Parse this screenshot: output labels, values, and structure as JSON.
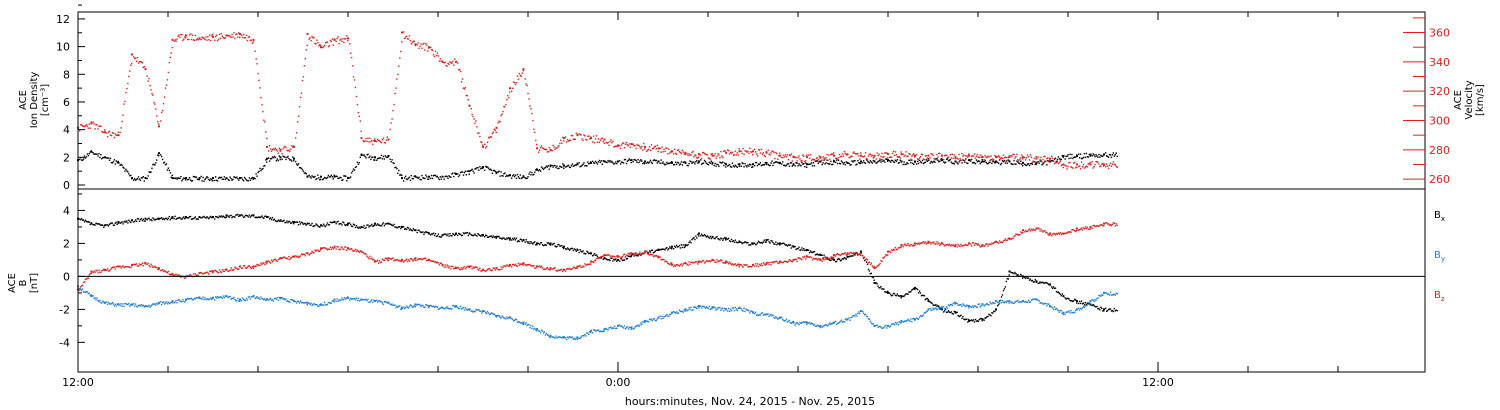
{
  "chart_data": [
    {
      "type": "scatter",
      "panel": "top",
      "ylabel_lines": [
        "ACE",
        "Ion Density",
        "[cm⁻³]"
      ],
      "ylabel2_lines": [
        "ACE",
        "Velocity",
        "[km/s]"
      ],
      "y_ticks": [
        0,
        2,
        4,
        6,
        8,
        10,
        12
      ],
      "ylim": [
        0,
        12.5
      ],
      "y2_ticks": [
        260,
        280,
        300,
        320,
        340,
        360
      ],
      "y2lim": [
        256,
        374
      ],
      "series": [
        {
          "name": "",
          "axis": "left",
          "color": "#000000",
          "x": [
            0.0,
            0.3,
            0.6,
            0.9,
            1.2,
            1.5,
            1.8,
            2.1,
            2.4,
            2.7,
            3.0,
            3.3,
            3.6,
            3.9,
            4.2,
            4.5,
            4.8,
            5.1,
            5.4,
            5.7,
            6.0,
            6.3,
            6.6,
            6.9,
            7.2,
            7.5,
            7.8,
            8.1,
            8.4,
            8.7,
            9.0,
            9.3,
            9.6,
            9.9,
            10.2,
            10.5,
            10.8,
            11.1,
            11.4,
            11.7,
            12.0,
            12.3,
            12.6,
            12.9,
            13.2,
            13.5,
            13.8,
            14.1,
            14.4,
            14.7,
            15.0,
            15.3,
            15.6,
            15.9,
            16.2,
            16.5,
            16.8,
            17.1,
            17.4,
            17.7,
            18.0,
            18.3,
            18.6,
            18.9,
            19.2,
            19.5,
            19.8,
            20.1,
            20.4,
            20.7,
            21.0,
            21.3,
            21.6,
            21.9,
            22.2,
            22.5,
            22.8
          ],
          "values": [
            1.8,
            2.4,
            2.0,
            1.6,
            0.5,
            0.5,
            2.3,
            0.5,
            0.5,
            0.5,
            0.5,
            0.5,
            0.5,
            0.5,
            1.9,
            2.0,
            1.9,
            0.6,
            0.6,
            0.6,
            0.5,
            2.2,
            2.0,
            2.1,
            0.5,
            0.6,
            0.6,
            0.6,
            0.8,
            1.0,
            1.3,
            0.9,
            0.7,
            0.6,
            1.1,
            1.4,
            1.4,
            1.5,
            1.6,
            1.7,
            1.7,
            1.8,
            1.7,
            1.7,
            1.6,
            1.6,
            1.7,
            1.6,
            1.5,
            1.5,
            1.5,
            1.6,
            1.6,
            1.5,
            1.5,
            1.7,
            1.7,
            1.6,
            1.7,
            1.7,
            1.8,
            1.7,
            1.7,
            1.8,
            1.8,
            1.7,
            1.8,
            1.7,
            1.7,
            1.7,
            1.6,
            1.6,
            1.7,
            2.1,
            2.1,
            2.2,
            2.2
          ]
        },
        {
          "name": "",
          "axis": "right",
          "color": "#e0201c",
          "x": [
            0.0,
            0.3,
            0.6,
            0.9,
            1.2,
            1.5,
            1.8,
            2.1,
            2.4,
            2.7,
            3.0,
            3.3,
            3.6,
            3.9,
            4.2,
            4.5,
            4.8,
            5.1,
            5.4,
            5.7,
            6.0,
            6.3,
            6.6,
            6.9,
            7.2,
            7.5,
            7.8,
            8.1,
            8.4,
            8.7,
            9.0,
            9.3,
            9.6,
            9.9,
            10.2,
            10.5,
            10.8,
            11.1,
            11.4,
            11.7,
            12.0,
            12.3,
            12.6,
            12.9,
            13.2,
            13.5,
            13.8,
            14.1,
            14.4,
            14.7,
            15.0,
            15.3,
            15.6,
            15.9,
            16.2,
            16.5,
            16.8,
            17.1,
            17.4,
            17.7,
            18.0,
            18.3,
            18.6,
            18.9,
            19.2,
            19.5,
            19.8,
            20.1,
            20.4,
            20.7,
            21.0,
            21.3,
            21.6,
            21.9,
            22.2,
            22.5,
            22.8
          ],
          "values": [
            295,
            298,
            292,
            290,
            345,
            335,
            296,
            355,
            358,
            356,
            357,
            358,
            359,
            355,
            282,
            280,
            282,
            359,
            350,
            355,
            356,
            288,
            286,
            287,
            360,
            352,
            350,
            340,
            340,
            310,
            282,
            295,
            322,
            335,
            281,
            280,
            288,
            290,
            288,
            287,
            283,
            284,
            282,
            281,
            279,
            278,
            277,
            276,
            278,
            279,
            279,
            278,
            276,
            275,
            275,
            275,
            276,
            277,
            276,
            276,
            277,
            277,
            276,
            276,
            276,
            275,
            276,
            275,
            275,
            275,
            275,
            274,
            274,
            270,
            270,
            270,
            270
          ]
        }
      ]
    },
    {
      "type": "scatter",
      "panel": "bottom",
      "ylabel_lines": [
        "ACE",
        "B",
        "[nT]"
      ],
      "y_ticks": [
        -4,
        -2,
        0,
        2,
        4
      ],
      "ylim": [
        -5.8,
        5.3
      ],
      "x_tick_labels": [
        "12:00",
        "0:00",
        "12:00"
      ],
      "x_tick_hours": [
        0,
        12,
        24
      ],
      "xlim": [
        0,
        30
      ],
      "xlabel": "hours:minutes, Nov. 24, 2015 - Nov. 25, 2015",
      "series": [
        {
          "name": "Bx",
          "color": "#000000",
          "x": [
            0.0,
            0.3,
            0.6,
            0.9,
            1.2,
            1.5,
            1.8,
            2.1,
            2.4,
            2.7,
            3.0,
            3.3,
            3.6,
            3.9,
            4.2,
            4.5,
            4.8,
            5.1,
            5.4,
            5.7,
            6.0,
            6.3,
            6.6,
            6.9,
            7.2,
            7.5,
            7.8,
            8.1,
            8.4,
            8.7,
            9.0,
            9.3,
            9.6,
            9.9,
            10.2,
            10.5,
            10.8,
            11.1,
            11.4,
            11.7,
            12.0,
            12.3,
            12.6,
            12.9,
            13.2,
            13.5,
            13.8,
            14.1,
            14.4,
            14.7,
            15.0,
            15.3,
            15.6,
            15.9,
            16.2,
            16.5,
            16.8,
            17.1,
            17.4,
            17.7,
            18.0,
            18.3,
            18.6,
            18.9,
            19.2,
            19.5,
            19.8,
            20.1,
            20.4,
            20.7,
            21.0,
            21.3,
            21.6,
            21.9,
            22.2,
            22.5,
            22.8
          ],
          "values": [
            3.5,
            3.2,
            3.1,
            3.3,
            3.4,
            3.5,
            3.5,
            3.6,
            3.6,
            3.6,
            3.6,
            3.7,
            3.7,
            3.7,
            3.6,
            3.4,
            3.3,
            3.2,
            3.1,
            3.3,
            3.2,
            3.0,
            3.2,
            3.2,
            3.0,
            2.8,
            2.6,
            2.5,
            2.6,
            2.6,
            2.5,
            2.4,
            2.3,
            2.2,
            2.0,
            2.0,
            1.8,
            1.6,
            1.4,
            1.1,
            1.0,
            1.3,
            1.5,
            1.6,
            1.8,
            1.9,
            2.6,
            2.4,
            2.3,
            2.1,
            2.0,
            2.2,
            2.0,
            1.8,
            1.6,
            1.3,
            1.0,
            1.2,
            1.5,
            -0.4,
            -1.0,
            -1.2,
            -0.7,
            -1.5,
            -2.0,
            -2.2,
            -2.7,
            -2.6,
            -2.0,
            0.3,
            0.0,
            -0.3,
            -0.5,
            -1.2,
            -1.5,
            -1.7,
            -2.0
          ]
        },
        {
          "name": "By",
          "color": "#1f7fd8",
          "x": [
            0.0,
            0.3,
            0.6,
            0.9,
            1.2,
            1.5,
            1.8,
            2.1,
            2.4,
            2.7,
            3.0,
            3.3,
            3.6,
            3.9,
            4.2,
            4.5,
            4.8,
            5.1,
            5.4,
            5.7,
            6.0,
            6.3,
            6.6,
            6.9,
            7.2,
            7.5,
            7.8,
            8.1,
            8.4,
            8.7,
            9.0,
            9.3,
            9.6,
            9.9,
            10.2,
            10.5,
            10.8,
            11.1,
            11.4,
            11.7,
            12.0,
            12.3,
            12.6,
            12.9,
            13.2,
            13.5,
            13.8,
            14.1,
            14.4,
            14.7,
            15.0,
            15.3,
            15.6,
            15.9,
            16.2,
            16.5,
            16.8,
            17.1,
            17.4,
            17.7,
            18.0,
            18.3,
            18.6,
            18.9,
            19.2,
            19.5,
            19.8,
            20.1,
            20.4,
            20.7,
            21.0,
            21.3,
            21.6,
            21.9,
            22.2,
            22.5,
            22.8
          ],
          "values": [
            -0.6,
            -1.2,
            -1.6,
            -1.7,
            -1.7,
            -1.8,
            -1.6,
            -1.5,
            -1.4,
            -1.3,
            -1.3,
            -1.2,
            -1.4,
            -1.2,
            -1.4,
            -1.3,
            -1.5,
            -1.6,
            -1.7,
            -1.4,
            -1.3,
            -1.4,
            -1.5,
            -1.6,
            -1.9,
            -1.7,
            -1.8,
            -1.9,
            -1.8,
            -2.0,
            -2.1,
            -2.4,
            -2.5,
            -2.8,
            -3.2,
            -3.6,
            -3.7,
            -3.7,
            -3.3,
            -3.2,
            -3.0,
            -3.1,
            -2.7,
            -2.5,
            -2.2,
            -2.0,
            -1.8,
            -1.9,
            -2.0,
            -1.9,
            -2.2,
            -2.3,
            -2.5,
            -2.8,
            -2.8,
            -3.0,
            -2.8,
            -2.6,
            -2.1,
            -3.0,
            -3.0,
            -2.7,
            -2.6,
            -2.0,
            -1.9,
            -1.6,
            -1.8,
            -1.7,
            -1.5,
            -1.5,
            -1.5,
            -1.4,
            -1.8,
            -2.2,
            -2.0,
            -1.5,
            -1.0
          ]
        },
        {
          "name": "Bz",
          "color": "#e0201c",
          "x": [
            0.0,
            0.3,
            0.6,
            0.9,
            1.2,
            1.5,
            1.8,
            2.1,
            2.4,
            2.7,
            3.0,
            3.3,
            3.6,
            3.9,
            4.2,
            4.5,
            4.8,
            5.1,
            5.4,
            5.7,
            6.0,
            6.3,
            6.6,
            6.9,
            7.2,
            7.5,
            7.8,
            8.1,
            8.4,
            8.7,
            9.0,
            9.3,
            9.6,
            9.9,
            10.2,
            10.5,
            10.8,
            11.1,
            11.4,
            11.7,
            12.0,
            12.3,
            12.6,
            12.9,
            13.2,
            13.5,
            13.8,
            14.1,
            14.4,
            14.7,
            15.0,
            15.3,
            15.6,
            15.9,
            16.2,
            16.5,
            16.8,
            17.1,
            17.4,
            17.7,
            18.0,
            18.3,
            18.6,
            18.9,
            19.2,
            19.5,
            19.8,
            20.1,
            20.4,
            20.7,
            21.0,
            21.3,
            21.6,
            21.9,
            22.2,
            22.5,
            22.8
          ],
          "values": [
            -0.8,
            0.3,
            0.4,
            0.6,
            0.7,
            0.8,
            0.5,
            0.1,
            0.0,
            0.2,
            0.3,
            0.4,
            0.6,
            0.6,
            0.9,
            1.1,
            1.2,
            1.4,
            1.7,
            1.8,
            1.7,
            1.5,
            0.9,
            1.1,
            1.0,
            1.1,
            1.0,
            0.7,
            0.5,
            0.6,
            0.4,
            0.5,
            0.7,
            0.8,
            0.6,
            0.5,
            0.4,
            0.6,
            0.9,
            1.3,
            1.2,
            1.4,
            1.5,
            1.2,
            0.7,
            0.8,
            0.9,
            1.0,
            0.9,
            0.7,
            0.7,
            0.8,
            0.9,
            1.0,
            1.2,
            1.0,
            1.3,
            1.4,
            1.4,
            0.5,
            1.5,
            1.9,
            2.0,
            2.1,
            2.0,
            1.9,
            2.0,
            1.9,
            2.1,
            2.3,
            2.8,
            2.9,
            2.6,
            2.6,
            2.9,
            3.0,
            3.2
          ]
        }
      ],
      "legend_position": "right"
    }
  ]
}
